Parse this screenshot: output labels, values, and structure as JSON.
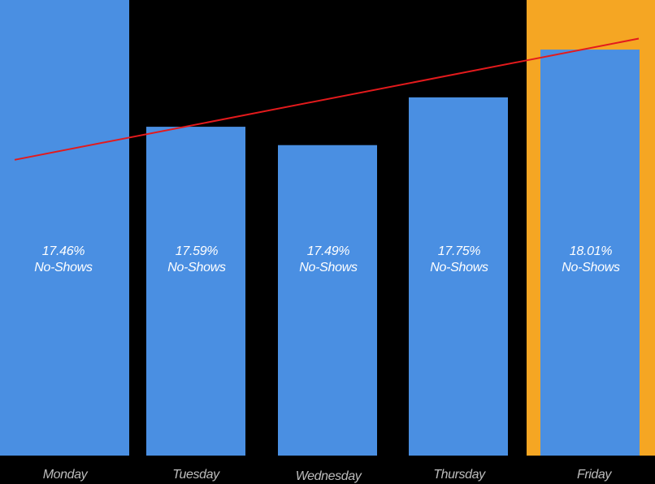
{
  "chart_data": {
    "type": "bar",
    "title": "",
    "xlabel": "",
    "ylabel": "",
    "categories": [
      "Monday",
      "Tuesday",
      "Wednesday",
      "Thursday",
      "Friday"
    ],
    "values": [
      17.46,
      17.59,
      17.49,
      17.75,
      18.01
    ],
    "unit": "%",
    "bar_labels": [
      {
        "value": "17.46%",
        "suffix": "No-Shows"
      },
      {
        "value": "17.59%",
        "suffix": "No-Shows"
      },
      {
        "value": "17.49%",
        "suffix": "No-Shows"
      },
      {
        "value": "17.75%",
        "suffix": "No-Shows"
      },
      {
        "value": "18.01%",
        "suffix": "No-Shows"
      }
    ],
    "ylim": [
      15.8,
      18.28
    ],
    "highlighted_category": "Friday",
    "trendline": {
      "start": 17.41,
      "end": 18.07
    },
    "grid": false,
    "legend": "none",
    "colors": {
      "background": "#000000",
      "bar": "#4a8fe2",
      "highlight": "#f5a623",
      "trendline": "#e31a1c",
      "label_text": "#ffffff",
      "axis_text": "#bdbdbd"
    }
  }
}
